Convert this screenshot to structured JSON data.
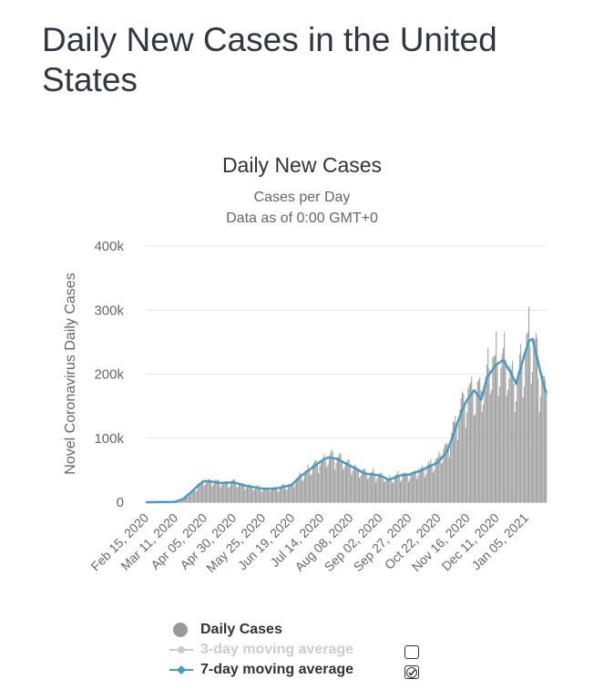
{
  "page": {
    "title": "Daily New Cases in the United States"
  },
  "chart_data": {
    "type": "bar",
    "title": "Daily New Cases",
    "subtitle_lines": [
      "Cases per Day",
      "Data as of 0:00 GMT+0"
    ],
    "ylabel": "Novel Coronavirus Daily Cases",
    "xlabel": "",
    "ylim": [
      0,
      400000
    ],
    "y_ticks": [
      0,
      100000,
      200000,
      300000,
      400000
    ],
    "y_tick_labels": [
      "0",
      "100k",
      "200k",
      "300k",
      "400k"
    ],
    "grid": true,
    "x_range": [
      "2020-02-15",
      "2021-01-23"
    ],
    "x_tick_labels": [
      "Feb 15, 2020",
      "Mar 11, 2020",
      "Apr 05, 2020",
      "Apr 30, 2020",
      "May 25, 2020",
      "Jun 19, 2020",
      "Jul 14, 2020",
      "Aug 08, 2020",
      "Sep 02, 2020",
      "Sep 27, 2020",
      "Oct 22, 2020",
      "Nov 16, 2020",
      "Dec 11, 2020",
      "Jan 05, 2021"
    ],
    "series": [
      {
        "name": "Daily Cases",
        "type": "bar",
        "color": "#999999",
        "note": "approximate weekly-sampled anchor values (cases/day), interpolated with weekly oscillation",
        "anchors": [
          [
            "2020-02-15",
            0
          ],
          [
            "2020-03-01",
            10
          ],
          [
            "2020-03-11",
            400
          ],
          [
            "2020-03-18",
            6000
          ],
          [
            "2020-03-25",
            14000
          ],
          [
            "2020-04-01",
            26000
          ],
          [
            "2020-04-05",
            32000
          ],
          [
            "2020-04-10",
            33000
          ],
          [
            "2020-04-20",
            30000
          ],
          [
            "2020-04-30",
            30000
          ],
          [
            "2020-05-10",
            26000
          ],
          [
            "2020-05-25",
            21000
          ],
          [
            "2020-06-05",
            21000
          ],
          [
            "2020-06-19",
            27000
          ],
          [
            "2020-06-26",
            40000
          ],
          [
            "2020-07-05",
            52000
          ],
          [
            "2020-07-14",
            64000
          ],
          [
            "2020-07-20",
            70000
          ],
          [
            "2020-07-27",
            68000
          ],
          [
            "2020-08-08",
            55000
          ],
          [
            "2020-08-20",
            45000
          ],
          [
            "2020-09-02",
            42000
          ],
          [
            "2020-09-10",
            35000
          ],
          [
            "2020-09-20",
            42000
          ],
          [
            "2020-09-27",
            43000
          ],
          [
            "2020-10-08",
            50000
          ],
          [
            "2020-10-22",
            65000
          ],
          [
            "2020-10-30",
            85000
          ],
          [
            "2020-11-05",
            115000
          ],
          [
            "2020-11-12",
            150000
          ],
          [
            "2020-11-16",
            160000
          ],
          [
            "2020-11-20",
            175000
          ],
          [
            "2020-11-26",
            165000
          ],
          [
            "2020-12-03",
            195000
          ],
          [
            "2020-12-11",
            220000
          ],
          [
            "2020-12-17",
            220000
          ],
          [
            "2020-12-24",
            195000
          ],
          [
            "2020-12-28",
            185000
          ],
          [
            "2021-01-05",
            235000
          ],
          [
            "2021-01-08",
            265000
          ],
          [
            "2021-01-12",
            240000
          ],
          [
            "2021-01-18",
            185000
          ],
          [
            "2021-01-23",
            160000
          ]
        ],
        "peak": [
          "2021-01-08",
          305000
        ]
      },
      {
        "name": "3-day moving average",
        "type": "line",
        "color": "#cccccc",
        "visible": false
      },
      {
        "name": "7-day moving average",
        "type": "line",
        "color": "#4a9ac1",
        "visible": true,
        "points": [
          [
            "2020-02-15",
            0
          ],
          [
            "2020-03-11",
            500
          ],
          [
            "2020-03-18",
            5000
          ],
          [
            "2020-03-25",
            16000
          ],
          [
            "2020-04-01",
            28000
          ],
          [
            "2020-04-05",
            33000
          ],
          [
            "2020-04-12",
            32000
          ],
          [
            "2020-04-20",
            30000
          ],
          [
            "2020-04-30",
            31000
          ],
          [
            "2020-05-10",
            26000
          ],
          [
            "2020-05-25",
            21000
          ],
          [
            "2020-06-05",
            21000
          ],
          [
            "2020-06-19",
            27000
          ],
          [
            "2020-06-26",
            40000
          ],
          [
            "2020-07-05",
            52000
          ],
          [
            "2020-07-14",
            64000
          ],
          [
            "2020-07-20",
            70000
          ],
          [
            "2020-07-27",
            68000
          ],
          [
            "2020-08-08",
            57000
          ],
          [
            "2020-08-20",
            45000
          ],
          [
            "2020-09-02",
            42000
          ],
          [
            "2020-09-10",
            35000
          ],
          [
            "2020-09-20",
            42000
          ],
          [
            "2020-09-27",
            43000
          ],
          [
            "2020-10-08",
            50000
          ],
          [
            "2020-10-22",
            62000
          ],
          [
            "2020-10-30",
            80000
          ],
          [
            "2020-11-05",
            110000
          ],
          [
            "2020-11-12",
            145000
          ],
          [
            "2020-11-16",
            160000
          ],
          [
            "2020-11-22",
            175000
          ],
          [
            "2020-11-28",
            160000
          ],
          [
            "2020-12-03",
            195000
          ],
          [
            "2020-12-11",
            215000
          ],
          [
            "2020-12-17",
            222000
          ],
          [
            "2020-12-24",
            200000
          ],
          [
            "2020-12-28",
            185000
          ],
          [
            "2021-01-04",
            230000
          ],
          [
            "2021-01-08",
            252000
          ],
          [
            "2021-01-11",
            255000
          ],
          [
            "2021-01-15",
            225000
          ],
          [
            "2021-01-20",
            185000
          ],
          [
            "2021-01-23",
            170000
          ]
        ]
      }
    ],
    "legend_position": "bottom-center"
  },
  "legend": {
    "items": [
      {
        "label": "Daily Cases",
        "color": "#333333",
        "has_checkbox": false
      },
      {
        "label": "3-day moving average",
        "color": "#cccccc",
        "has_checkbox": true,
        "checked": false
      },
      {
        "label": "7-day moving average",
        "color": "#333333",
        "has_checkbox": true,
        "checked": true
      }
    ]
  }
}
